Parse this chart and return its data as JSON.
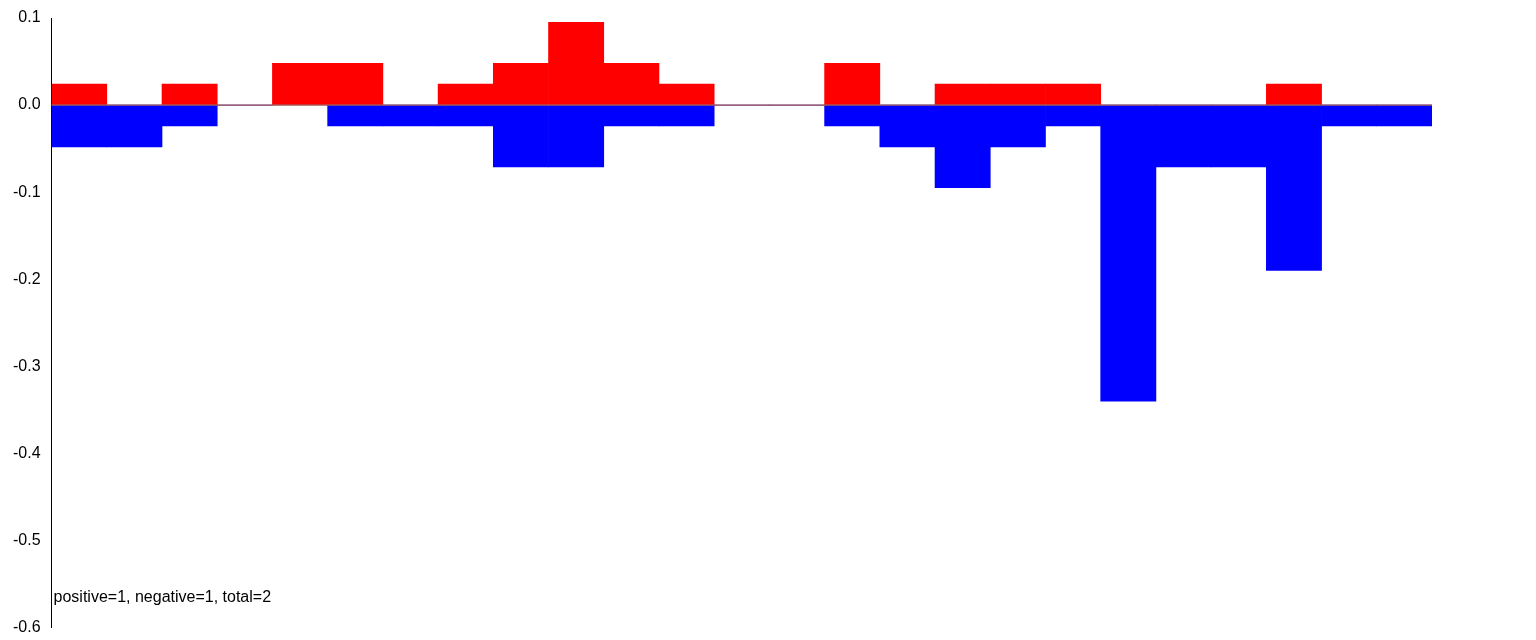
{
  "chart_data": {
    "type": "bar",
    "stacked": true,
    "categories": [
      null,
      null,
      null,
      null,
      null,
      null,
      null,
      null,
      null,
      null,
      null,
      null,
      null,
      null,
      null,
      null,
      null,
      null,
      null,
      null,
      null,
      null,
      null,
      null,
      null
    ],
    "series": [
      {
        "color": "#ff0000",
        "values": [
          0.024,
          0,
          0.024,
          0,
          0.048,
          0.048,
          0,
          0.024,
          0.048,
          0.095,
          0.048,
          0.024,
          0,
          0,
          0.048,
          0,
          0.024,
          0.024,
          0.024,
          0,
          0,
          0,
          0.024,
          0,
          0
        ]
      },
      {
        "color": "#0000ff",
        "values": [
          -0.048,
          -0.048,
          -0.024,
          0,
          0,
          -0.024,
          -0.024,
          -0.024,
          -0.071,
          -0.071,
          -0.024,
          -0.024,
          0,
          0,
          -0.024,
          -0.048,
          -0.095,
          -0.048,
          -0.024,
          -0.34,
          -0.071,
          -0.071,
          -0.19,
          -0.024,
          -0.024
        ]
      }
    ],
    "ylim": [
      -0.6,
      0.1
    ],
    "yticks": [
      {
        "value": -0.6,
        "label": "-0.6"
      },
      {
        "value": -0.5,
        "label": "-0.5"
      },
      {
        "value": -0.4,
        "label": "-0.4"
      },
      {
        "value": -0.3,
        "label": "-0.3"
      },
      {
        "value": -0.2,
        "label": "-0.2"
      },
      {
        "value": -0.1,
        "label": "-0.1"
      },
      {
        "value": 0,
        "label": "0.0"
      },
      {
        "value": 0.1,
        "label": "0.1"
      }
    ],
    "ref_lines": [
      {
        "axis": "y",
        "value": 0,
        "color": "#808080"
      }
    ],
    "tick_labels": "y",
    "annotations": [
      "positive=1, negative=1, total=2"
    ]
  }
}
